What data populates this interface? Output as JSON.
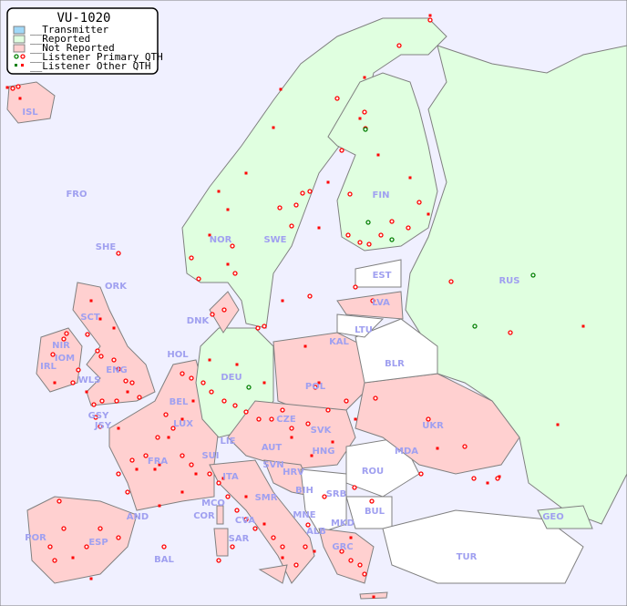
{
  "title": "VU-1020",
  "legend": {
    "items": [
      {
        "label": "__Transmitter",
        "color": "#a0d8f8"
      },
      {
        "label": "__Reported",
        "color": "#e0ffe0"
      },
      {
        "label": "__Not Reported",
        "color": "#ffd0d0"
      },
      {
        "label": "__Listener Primary QTH",
        "marker": "ring"
      },
      {
        "label": "__Listener Other QTH",
        "marker": "square"
      }
    ]
  },
  "colors": {
    "sea": "#f0f0ff",
    "reported": "#e0ffe0",
    "not_reported": "#ffd0d0",
    "no_data": "#ffffff",
    "border": "#808080",
    "label": "#a0a0f0",
    "listener": "#ff0000",
    "listener_reported": "#008000"
  },
  "countries": [
    "ISL",
    "FRO",
    "SHE",
    "ORK",
    "NOR",
    "SWE",
    "FIN",
    "EST",
    "RUS",
    "LVA",
    "LTU",
    "KAL",
    "BLR",
    "DNK",
    "SCT",
    "NIR",
    "IOM",
    "IRL",
    "ENG",
    "WLS",
    "HOL",
    "DEU",
    "POL",
    "GSY",
    "JSY",
    "BEL",
    "LUX",
    "CZE",
    "SVK",
    "UKR",
    "FRA",
    "SUI",
    "LIE",
    "AUT",
    "HNG",
    "MDA",
    "SVN",
    "HRV",
    "ROU",
    "ITA",
    "BIH",
    "SRB",
    "MCO",
    "SMR",
    "COR",
    "CVA",
    "MNE",
    "BUL",
    "GEO",
    "AND",
    "ALB",
    "MKD",
    "POR",
    "ESP",
    "SAR",
    "BAL",
    "GRC",
    "TUR"
  ]
}
